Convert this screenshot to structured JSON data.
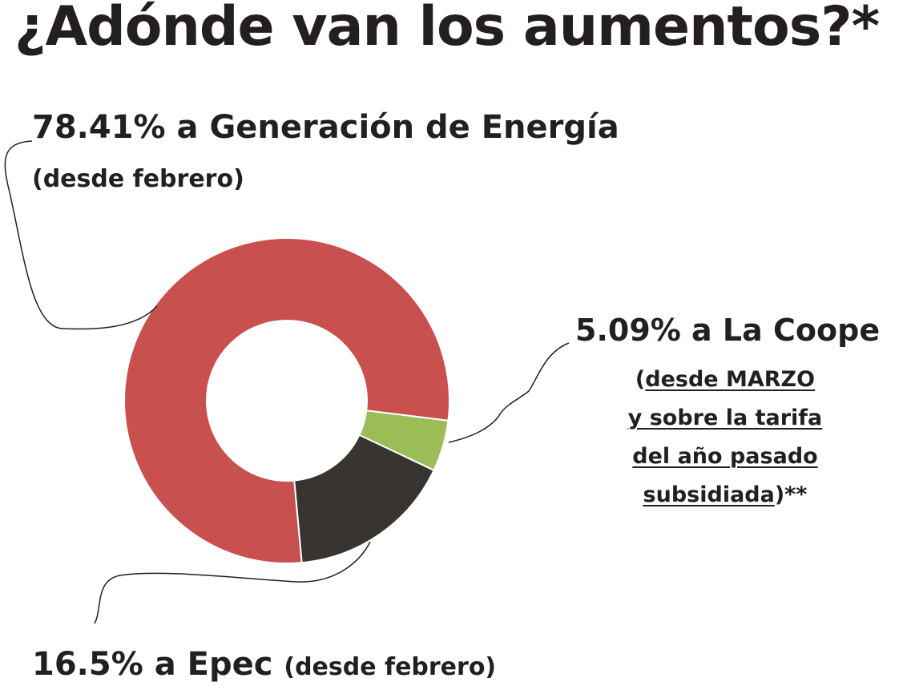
{
  "title": "¿Adónde van los aumentos?*",
  "colors": {
    "generacion": "#c8514f",
    "coope": "#9bbd58",
    "epec": "#383431",
    "text": "#231f20"
  },
  "labels": {
    "generacion_main": "78.41% a Generación de Energía",
    "generacion_sub": "(desde febrero)",
    "coope_main": "5.09% a La Coope",
    "coope_l1_open": "(",
    "coope_l1": "desde MARZO",
    "coope_l2": "y sobre la tarifa",
    "coope_l3": "del año pasado",
    "coope_l4": "subsidiada",
    "coope_l4_close": ")**",
    "epec_main": "16.5% a Epec",
    "epec_sub": "(desde febrero)"
  },
  "chart_data": {
    "type": "pie",
    "style": "donut",
    "title": "¿Adónde van los aumentos?*",
    "slices": [
      {
        "label": "Generación de Energía",
        "value": 78.41
      },
      {
        "label": "La Coope",
        "value": 5.09
      },
      {
        "label": "Epec",
        "value": 16.5
      }
    ],
    "legend": "none"
  }
}
